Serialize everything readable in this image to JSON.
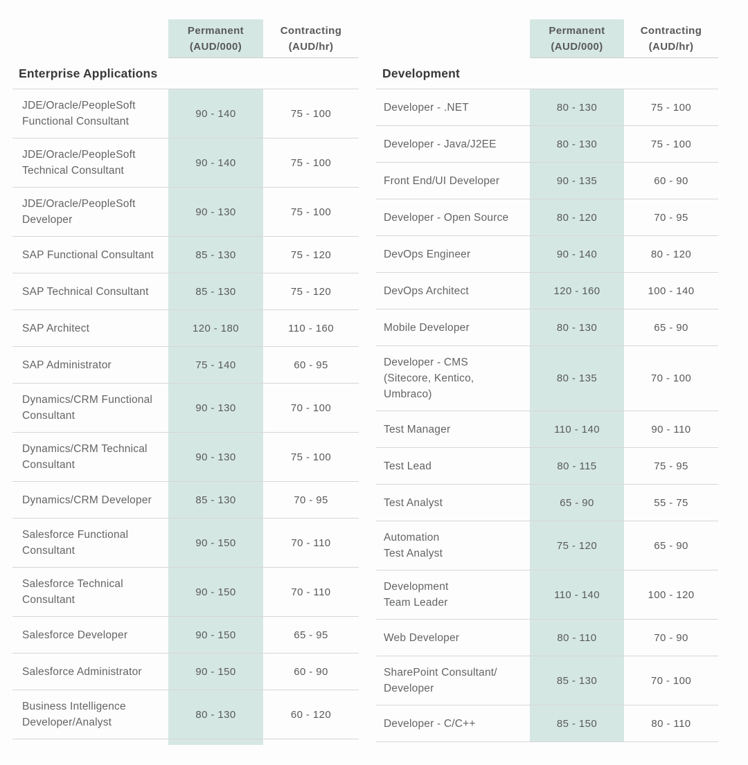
{
  "page": {
    "colors": {
      "accent_teal": "#00968c",
      "mint_column_bg": "#d5e7e2",
      "row_border": "#d6d6d6",
      "section_title_text": "#39393b",
      "body_text": "#636466",
      "page_bg": "#fdfdfd"
    }
  },
  "column_headers": {
    "permanent_label": "Permanent",
    "permanent_unit": "(AUD/000)",
    "contracting_label": "Contracting",
    "contracting_unit": "(AUD/hr)"
  },
  "sections": [
    {
      "title": "Enterprise Applications",
      "rows": [
        {
          "role": "JDE/Oracle/PeopleSoft\nFunctional Consultant",
          "permanent": "90 - 140",
          "contracting": "75 - 100"
        },
        {
          "role": "JDE/Oracle/PeopleSoft\nTechnical Consultant",
          "permanent": "90 - 140",
          "contracting": "75 - 100"
        },
        {
          "role": "JDE/Oracle/PeopleSoft\nDeveloper",
          "permanent": "90 - 130",
          "contracting": "75 - 100"
        },
        {
          "role": "SAP Functional Consultant",
          "permanent": "85 - 130",
          "contracting": "75 - 120"
        },
        {
          "role": "SAP Technical Consultant",
          "permanent": "85 - 130",
          "contracting": "75 - 120"
        },
        {
          "role": "SAP Architect",
          "permanent": "120 - 180",
          "contracting": "110 - 160"
        },
        {
          "role": "SAP Administrator",
          "permanent": "75 - 140",
          "contracting": "60 - 95"
        },
        {
          "role": "Dynamics/CRM Functional\nConsultant",
          "permanent": "90 - 130",
          "contracting": "70 - 100"
        },
        {
          "role": "Dynamics/CRM Technical\nConsultant",
          "permanent": "90 - 130",
          "contracting": "75 - 100"
        },
        {
          "role": "Dynamics/CRM Developer",
          "permanent": "85 - 130",
          "contracting": "70 - 95"
        },
        {
          "role": "Salesforce Functional\nConsultant",
          "permanent": "90 - 150",
          "contracting": "70 - 110"
        },
        {
          "role": "Salesforce Technical\nConsultant",
          "permanent": "90 - 150",
          "contracting": "70 - 110"
        },
        {
          "role": "Salesforce Developer",
          "permanent": "90 - 150",
          "contracting": "65 - 95"
        },
        {
          "role": "Salesforce Administrator",
          "permanent": "90 - 150",
          "contracting": "60 - 90"
        },
        {
          "role": "Business Intelligence\nDeveloper/Analyst",
          "permanent": "80 - 130",
          "contracting": "60 - 120"
        }
      ]
    },
    {
      "title": "Development",
      "rows": [
        {
          "role": "Developer - .NET",
          "permanent": "80 - 130",
          "contracting": "75 - 100"
        },
        {
          "role": "Developer - Java/J2EE",
          "permanent": "80 - 130",
          "contracting": "75 - 100"
        },
        {
          "role": "Front End/UI Developer",
          "permanent": "90 - 135",
          "contracting": "60 - 90"
        },
        {
          "role": "Developer - Open Source",
          "permanent": "80 - 120",
          "contracting": "70 - 95"
        },
        {
          "role": "DevOps Engineer",
          "permanent": "90 - 140",
          "contracting": "80 - 120"
        },
        {
          "role": "DevOps Architect",
          "permanent": "120 - 160",
          "contracting": "100 - 140"
        },
        {
          "role": "Mobile Developer",
          "permanent": "80 - 130",
          "contracting": "65 - 90"
        },
        {
          "role": "Developer - CMS\n(Sitecore, Kentico,\nUmbraco)",
          "permanent": "80 - 135",
          "contracting": "70 - 100"
        },
        {
          "role": "Test Manager",
          "permanent": "110 - 140",
          "contracting": "90 - 110"
        },
        {
          "role": "Test Lead",
          "permanent": "80 - 115",
          "contracting": "75 - 95"
        },
        {
          "role": "Test Analyst",
          "permanent": "65 - 90",
          "contracting": "55 - 75"
        },
        {
          "role": "Automation\nTest Analyst",
          "permanent": "75 - 120",
          "contracting": "65 - 90"
        },
        {
          "role": "Development\nTeam Leader",
          "permanent": "110 - 140",
          "contracting": "100 - 120"
        },
        {
          "role": "Web Developer",
          "permanent": "80 - 110",
          "contracting": "70 - 90"
        },
        {
          "role": "SharePoint Consultant/\nDeveloper",
          "permanent": "85 - 130",
          "contracting": "70 - 100"
        },
        {
          "role": "Developer - C/C++",
          "permanent": "85 - 150",
          "contracting": "80 - 110"
        }
      ]
    }
  ]
}
